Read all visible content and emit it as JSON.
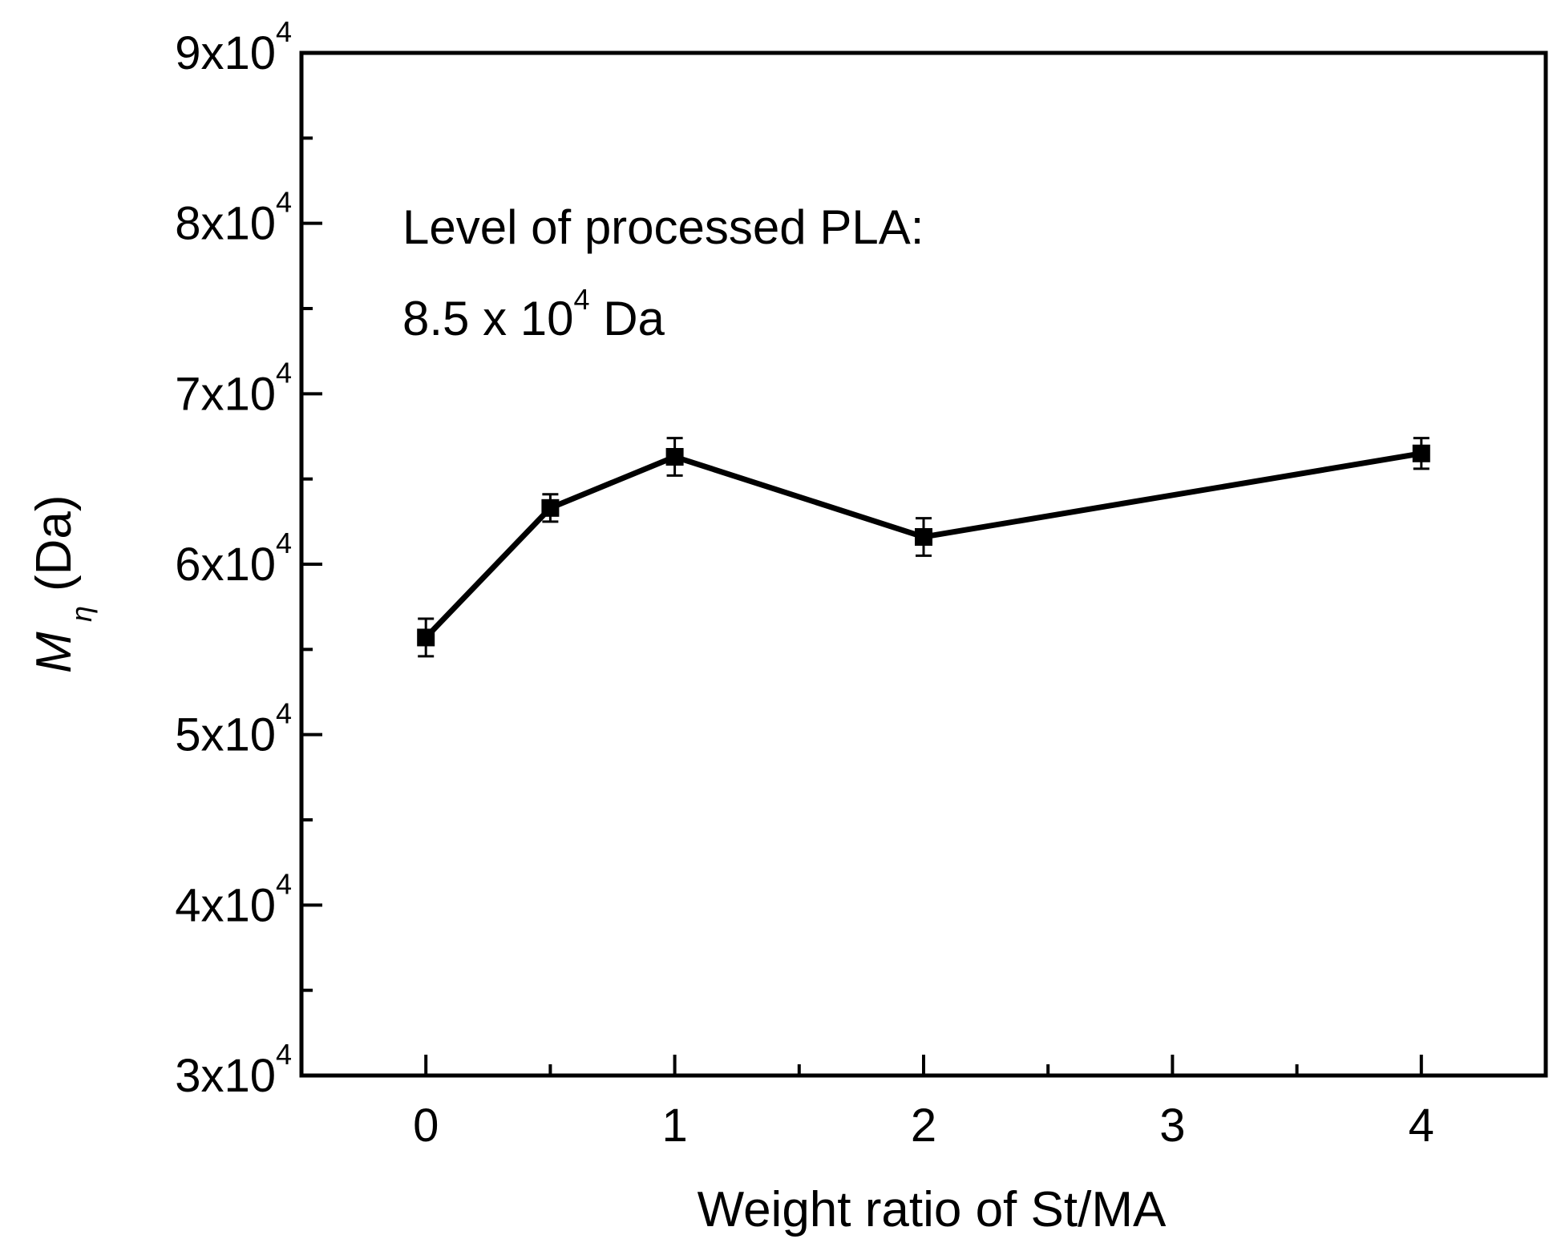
{
  "chart_data": {
    "type": "line",
    "title": "",
    "xlabel": "Weight ratio of St/MA",
    "ylabel_symbol": "M",
    "ylabel_subscript": "η",
    "ylabel_unit": "(Da)",
    "xlim": [
      -0.5,
      4.5
    ],
    "ylim": [
      30000,
      90000
    ],
    "x_ticks": [
      0,
      1,
      2,
      3,
      4
    ],
    "x_tick_labels": [
      "0",
      "1",
      "2",
      "3",
      "4"
    ],
    "x_minor_ticks": [
      -0.5,
      0.5,
      1.5,
      2.5,
      3.5,
      4.5
    ],
    "y_ticks": [
      30000,
      40000,
      50000,
      60000,
      70000,
      80000,
      90000
    ],
    "y_tick_mantissas": [
      "3x10",
      "4x10",
      "5x10",
      "6x10",
      "7x10",
      "8x10",
      "9x10"
    ],
    "y_tick_exponent": "4",
    "y_minor_ticks": [
      35000,
      45000,
      55000,
      65000,
      75000,
      85000
    ],
    "series": [
      {
        "name": "Mη",
        "x": [
          0,
          0.5,
          1,
          2,
          4
        ],
        "y": [
          55700,
          63300,
          66300,
          61600,
          66500
        ],
        "yerr": [
          1100,
          800,
          1100,
          1100,
          900
        ],
        "marker": "square",
        "color": "#000000"
      }
    ],
    "annotations": {
      "line1": "Level of processed PLA:",
      "line2_prefix": "8.5 x 10",
      "line2_exponent": "4",
      "line2_suffix": " Da"
    },
    "grid": false,
    "legend": "none"
  }
}
